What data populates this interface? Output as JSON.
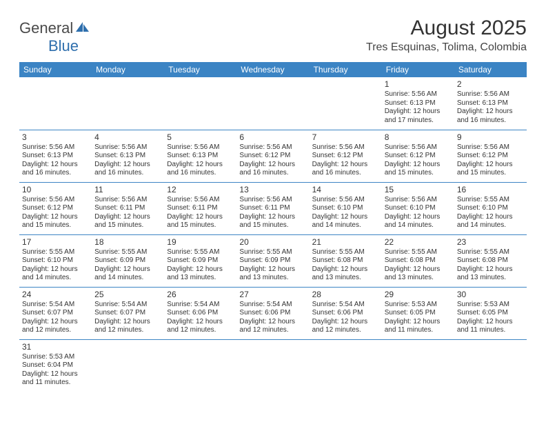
{
  "logo": {
    "text_general": "General",
    "text_blue": "Blue"
  },
  "title": "August 2025",
  "location": "Tres Esquinas, Tolima, Colombia",
  "colors": {
    "header_bg": "#3b84c4",
    "header_text": "#ffffff",
    "border": "#3b84c4",
    "body_text": "#333333",
    "logo_general": "#4a4a4a",
    "logo_blue": "#2f6fad",
    "background": "#ffffff"
  },
  "day_headers": [
    "Sunday",
    "Monday",
    "Tuesday",
    "Wednesday",
    "Thursday",
    "Friday",
    "Saturday"
  ],
  "weeks": [
    [
      null,
      null,
      null,
      null,
      null,
      {
        "n": "1",
        "sr": "5:56 AM",
        "ss": "6:13 PM",
        "dh": "12",
        "dm": "17"
      },
      {
        "n": "2",
        "sr": "5:56 AM",
        "ss": "6:13 PM",
        "dh": "12",
        "dm": "16"
      }
    ],
    [
      {
        "n": "3",
        "sr": "5:56 AM",
        "ss": "6:13 PM",
        "dh": "12",
        "dm": "16"
      },
      {
        "n": "4",
        "sr": "5:56 AM",
        "ss": "6:13 PM",
        "dh": "12",
        "dm": "16"
      },
      {
        "n": "5",
        "sr": "5:56 AM",
        "ss": "6:13 PM",
        "dh": "12",
        "dm": "16"
      },
      {
        "n": "6",
        "sr": "5:56 AM",
        "ss": "6:12 PM",
        "dh": "12",
        "dm": "16"
      },
      {
        "n": "7",
        "sr": "5:56 AM",
        "ss": "6:12 PM",
        "dh": "12",
        "dm": "16"
      },
      {
        "n": "8",
        "sr": "5:56 AM",
        "ss": "6:12 PM",
        "dh": "12",
        "dm": "15"
      },
      {
        "n": "9",
        "sr": "5:56 AM",
        "ss": "6:12 PM",
        "dh": "12",
        "dm": "15"
      }
    ],
    [
      {
        "n": "10",
        "sr": "5:56 AM",
        "ss": "6:12 PM",
        "dh": "12",
        "dm": "15"
      },
      {
        "n": "11",
        "sr": "5:56 AM",
        "ss": "6:11 PM",
        "dh": "12",
        "dm": "15"
      },
      {
        "n": "12",
        "sr": "5:56 AM",
        "ss": "6:11 PM",
        "dh": "12",
        "dm": "15"
      },
      {
        "n": "13",
        "sr": "5:56 AM",
        "ss": "6:11 PM",
        "dh": "12",
        "dm": "15"
      },
      {
        "n": "14",
        "sr": "5:56 AM",
        "ss": "6:10 PM",
        "dh": "12",
        "dm": "14"
      },
      {
        "n": "15",
        "sr": "5:56 AM",
        "ss": "6:10 PM",
        "dh": "12",
        "dm": "14"
      },
      {
        "n": "16",
        "sr": "5:55 AM",
        "ss": "6:10 PM",
        "dh": "12",
        "dm": "14"
      }
    ],
    [
      {
        "n": "17",
        "sr": "5:55 AM",
        "ss": "6:10 PM",
        "dh": "12",
        "dm": "14"
      },
      {
        "n": "18",
        "sr": "5:55 AM",
        "ss": "6:09 PM",
        "dh": "12",
        "dm": "14"
      },
      {
        "n": "19",
        "sr": "5:55 AM",
        "ss": "6:09 PM",
        "dh": "12",
        "dm": "13"
      },
      {
        "n": "20",
        "sr": "5:55 AM",
        "ss": "6:09 PM",
        "dh": "12",
        "dm": "13"
      },
      {
        "n": "21",
        "sr": "5:55 AM",
        "ss": "6:08 PM",
        "dh": "12",
        "dm": "13"
      },
      {
        "n": "22",
        "sr": "5:55 AM",
        "ss": "6:08 PM",
        "dh": "12",
        "dm": "13"
      },
      {
        "n": "23",
        "sr": "5:55 AM",
        "ss": "6:08 PM",
        "dh": "12",
        "dm": "13"
      }
    ],
    [
      {
        "n": "24",
        "sr": "5:54 AM",
        "ss": "6:07 PM",
        "dh": "12",
        "dm": "12"
      },
      {
        "n": "25",
        "sr": "5:54 AM",
        "ss": "6:07 PM",
        "dh": "12",
        "dm": "12"
      },
      {
        "n": "26",
        "sr": "5:54 AM",
        "ss": "6:06 PM",
        "dh": "12",
        "dm": "12"
      },
      {
        "n": "27",
        "sr": "5:54 AM",
        "ss": "6:06 PM",
        "dh": "12",
        "dm": "12"
      },
      {
        "n": "28",
        "sr": "5:54 AM",
        "ss": "6:06 PM",
        "dh": "12",
        "dm": "12"
      },
      {
        "n": "29",
        "sr": "5:53 AM",
        "ss": "6:05 PM",
        "dh": "12",
        "dm": "11"
      },
      {
        "n": "30",
        "sr": "5:53 AM",
        "ss": "6:05 PM",
        "dh": "12",
        "dm": "11"
      }
    ],
    [
      {
        "n": "31",
        "sr": "5:53 AM",
        "ss": "6:04 PM",
        "dh": "12",
        "dm": "11"
      },
      null,
      null,
      null,
      null,
      null,
      null
    ]
  ],
  "labels": {
    "sunrise": "Sunrise:",
    "sunset": "Sunset:",
    "daylight": "Daylight:",
    "hours": "hours",
    "and": "and",
    "minutes": "minutes."
  }
}
